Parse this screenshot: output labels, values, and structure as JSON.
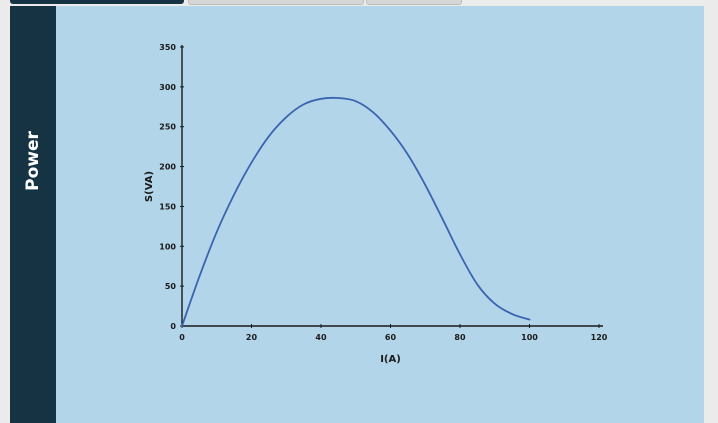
{
  "sidebar": {
    "label": "Power",
    "color": "#163344"
  },
  "panel": {
    "background": "#b3d5ea"
  },
  "chart_data": {
    "type": "line",
    "xlabel": "I(A)",
    "ylabel": "S(VA)",
    "xlim": [
      0,
      120
    ],
    "ylim": [
      0,
      350
    ],
    "xticks": [
      0,
      20,
      40,
      60,
      80,
      100,
      120
    ],
    "yticks": [
      0,
      50,
      100,
      150,
      200,
      250,
      300,
      350
    ],
    "grid": false,
    "line_color": "#3a64b0",
    "series": [
      {
        "x": [
          0,
          5,
          10,
          15,
          20,
          25,
          30,
          35,
          40,
          45,
          50,
          55,
          60,
          65,
          70,
          75,
          80,
          85,
          90,
          95,
          100
        ],
        "y": [
          0,
          62,
          118,
          165,
          205,
          238,
          262,
          278,
          285,
          286,
          282,
          268,
          245,
          215,
          177,
          134,
          90,
          52,
          28,
          15,
          8
        ]
      }
    ]
  }
}
